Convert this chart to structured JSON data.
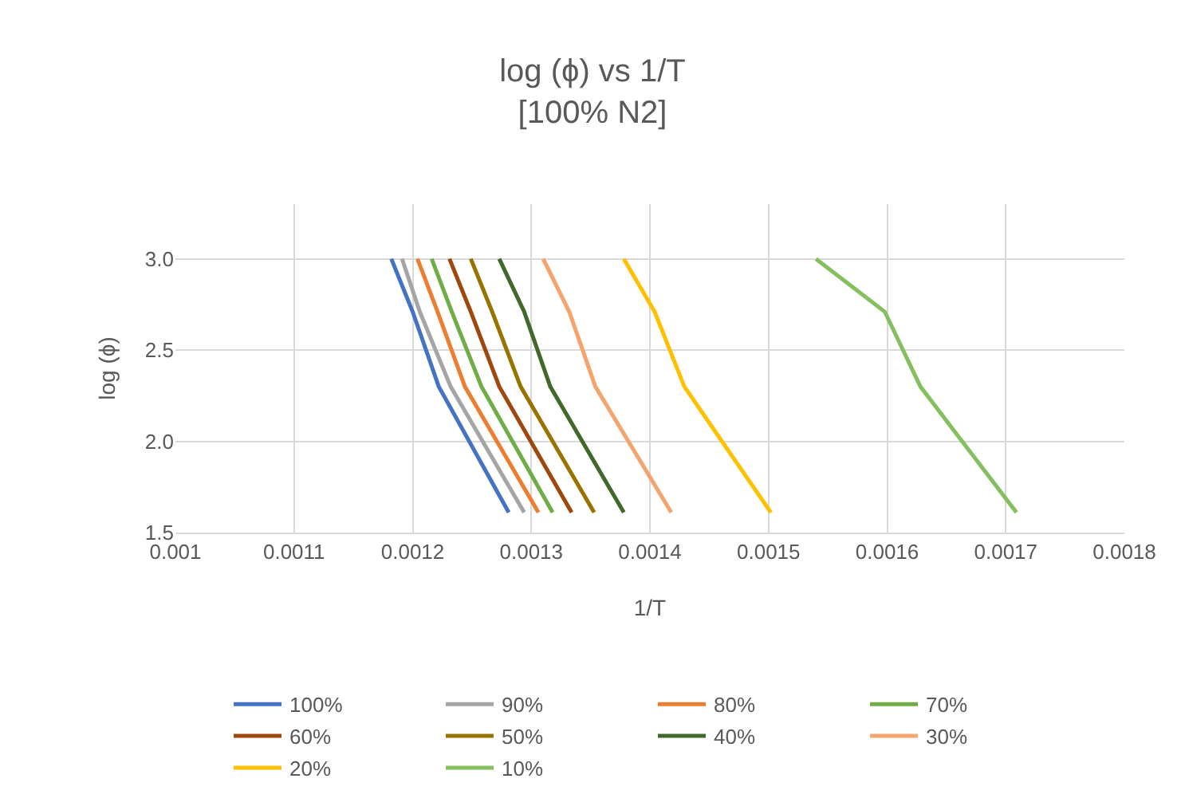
{
  "chart_data": {
    "type": "line",
    "title": "log (ϕ) vs 1/T",
    "subtitle": "[100% N2]",
    "xlabel": "1/T",
    "ylabel": "log (ϕ)",
    "xlim": [
      0.001,
      0.0018
    ],
    "xticks": [
      0.001,
      0.0011,
      0.0012,
      0.0013,
      0.0014,
      0.0015,
      0.0016,
      0.0017,
      0.0018
    ],
    "ylim": [
      1.5,
      3.3
    ],
    "yticks": [
      {
        "value": 1.5,
        "label": "1.5"
      },
      {
        "value": 2,
        "label": "2.0"
      },
      {
        "value": 2.5,
        "label": "2.5"
      },
      {
        "value": 3,
        "label": "3.0"
      }
    ],
    "grid": true,
    "legend": "bottom",
    "marker": "none",
    "line_style": "solid",
    "series": [
      {
        "name": "100%",
        "color": "#4472c4",
        "x": [
          0.001182,
          0.0012,
          0.001222,
          0.001281
        ],
        "values": [
          3.0,
          2.71,
          2.3,
          1.61
        ]
      },
      {
        "name": "90%",
        "color": "#a5a5a5",
        "x": [
          0.001191,
          0.001206,
          0.001232,
          0.001294
        ],
        "values": [
          3.0,
          2.71,
          2.3,
          1.61
        ]
      },
      {
        "name": "80%",
        "color": "#ed7d31",
        "x": [
          0.001204,
          0.001221,
          0.001244,
          0.001306
        ],
        "values": [
          3.0,
          2.71,
          2.3,
          1.61
        ]
      },
      {
        "name": "70%",
        "color": "#70ad47",
        "x": [
          0.001216,
          0.001233,
          0.001258,
          0.001318
        ],
        "values": [
          3.0,
          2.71,
          2.3,
          1.61
        ]
      },
      {
        "name": "60%",
        "color": "#9e480e",
        "x": [
          0.001231,
          0.001249,
          0.001273,
          0.001334
        ],
        "values": [
          3.0,
          2.71,
          2.3,
          1.61
        ]
      },
      {
        "name": "50%",
        "color": "#997300",
        "x": [
          0.001249,
          0.001267,
          0.001291,
          0.001353
        ],
        "values": [
          3.0,
          2.71,
          2.3,
          1.61
        ]
      },
      {
        "name": "40%",
        "color": "#43682b",
        "x": [
          0.001273,
          0.001294,
          0.001316,
          0.001378
        ],
        "values": [
          3.0,
          2.71,
          2.3,
          1.61
        ]
      },
      {
        "name": "30%",
        "color": "#f4a46c",
        "x": [
          0.00131,
          0.001332,
          0.001354,
          0.001418
        ],
        "values": [
          3.0,
          2.71,
          2.3,
          1.61
        ]
      },
      {
        "name": "20%",
        "color": "#ffc000",
        "x": [
          0.001378,
          0.001404,
          0.001429,
          0.001502
        ],
        "values": [
          3.0,
          2.71,
          2.3,
          1.61
        ]
      },
      {
        "name": "10%",
        "color": "#86bf60",
        "x": [
          0.00154,
          0.001598,
          0.001628,
          0.001709
        ],
        "values": [
          3.0,
          2.71,
          2.3,
          1.61
        ]
      }
    ]
  }
}
